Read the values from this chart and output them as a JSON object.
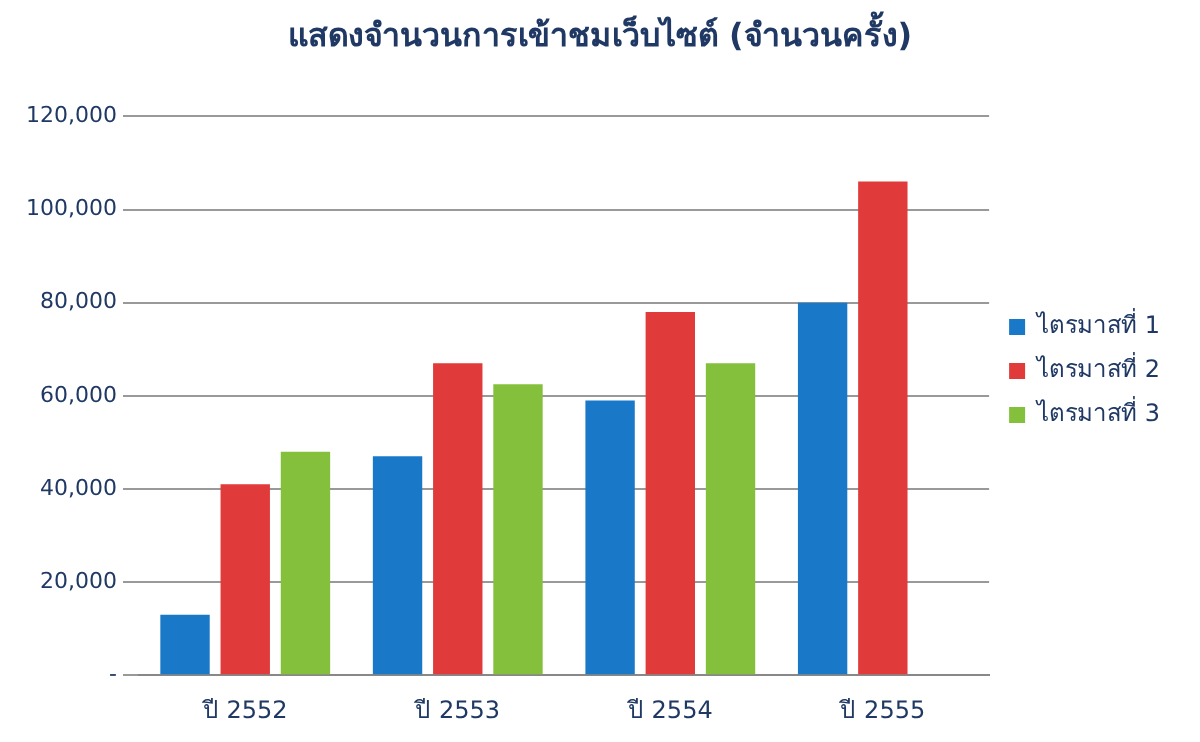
{
  "chart_data": {
    "type": "bar",
    "title": "แสดงจำนวนการเข้าชมเว็บไซต์ (จำนวนครั้ง)",
    "categories": [
      "ปี 2552",
      "ปี 2553",
      "ปี 2554",
      "ปี 2555"
    ],
    "series": [
      {
        "name": "ไตรมาสที่ 1",
        "color": "#1a78c8",
        "values": [
          13000,
          47000,
          59000,
          80000
        ]
      },
      {
        "name": "ไตรมาสที่ 2",
        "color": "#e03a3a",
        "values": [
          41000,
          67000,
          78000,
          106000
        ]
      },
      {
        "name": "ไตรมาสที่ 3",
        "color": "#84c03c",
        "values": [
          48000,
          62500,
          67000,
          null
        ]
      }
    ],
    "ylim": [
      0,
      120000
    ],
    "yticks": [
      {
        "value": 0,
        "label": "-"
      },
      {
        "value": 20000,
        "label": "20,000"
      },
      {
        "value": 40000,
        "label": "40,000"
      },
      {
        "value": 60000,
        "label": "60,000"
      },
      {
        "value": 80000,
        "label": "80,000"
      },
      {
        "value": 100000,
        "label": "100,000"
      },
      {
        "value": 120000,
        "label": "120,000"
      }
    ],
    "grid": "y",
    "legend": "right"
  }
}
